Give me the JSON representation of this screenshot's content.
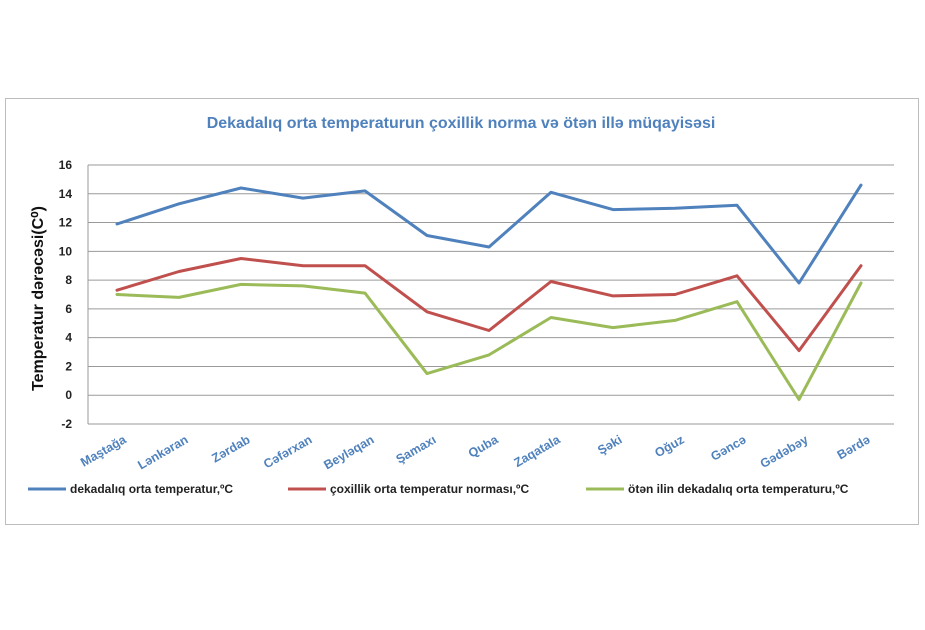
{
  "chart_data": {
    "type": "line",
    "title": "Dekadalıq orta temperaturun çoxillik   norma və ötən illə müqayisəsi",
    "ylabel": "Temperatur dərəcəsi(C⁰)",
    "xlabel": "",
    "ylim": [
      -2,
      16
    ],
    "yticks": [
      "-2",
      "0",
      "2",
      "4",
      "6",
      "8",
      "10",
      "12",
      "14",
      "16"
    ],
    "grid": true,
    "legend_position": "bottom",
    "categories": [
      "Maştağa",
      "Lənkəran",
      "Zərdab",
      "Cəfərxan",
      "Beyləqan",
      "Şamaxı",
      "Quba",
      "Zaqatala",
      "Şəki",
      "Oğuz",
      "Gəncə",
      "Gədəbəy",
      "Bərdə"
    ],
    "series": [
      {
        "name": "dekadalıq orta temperatur,ºC",
        "color": "#4f81bd",
        "values": [
          11.9,
          13.3,
          14.4,
          13.7,
          14.2,
          11.1,
          10.3,
          14.1,
          12.9,
          13.0,
          13.2,
          7.8,
          14.6
        ]
      },
      {
        "name": "çoxillik orta temperatur norması,ºC",
        "color": "#c0504d",
        "values": [
          7.3,
          8.6,
          9.5,
          9.0,
          9.0,
          5.8,
          4.5,
          7.9,
          6.9,
          7.0,
          8.3,
          3.1,
          9.0
        ]
      },
      {
        "name": "ötən ilin dekadalıq orta temperaturu,ºC",
        "color": "#9bbb59",
        "values": [
          7.0,
          6.8,
          7.7,
          7.6,
          7.1,
          1.5,
          2.8,
          5.4,
          4.7,
          5.2,
          6.5,
          -0.3,
          7.8
        ]
      }
    ]
  }
}
